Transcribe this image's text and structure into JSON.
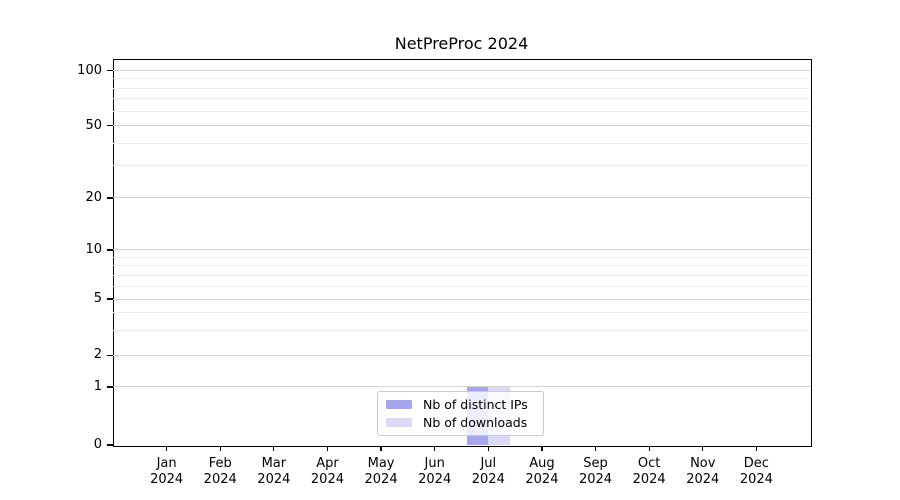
{
  "page": {
    "background": "#ffffff"
  },
  "chart_data": {
    "type": "bar",
    "title": "NetPreProc 2024",
    "categories": [
      "Jan",
      "Feb",
      "Mar",
      "Apr",
      "May",
      "Jun",
      "Jul",
      "Aug",
      "Sep",
      "Oct",
      "Nov",
      "Dec"
    ],
    "category_year": "2024",
    "series": [
      {
        "name": "Nb of distinct IPs",
        "color": "#a6a6ef",
        "values": [
          0,
          0,
          0,
          0,
          0,
          0,
          1,
          0,
          0,
          0,
          0,
          0
        ]
      },
      {
        "name": "Nb of downloads",
        "color": "#dadaf7",
        "values": [
          0,
          0,
          0,
          0,
          0,
          0,
          1,
          0,
          0,
          0,
          0,
          0
        ]
      }
    ],
    "y_axis": {
      "scale": "symlog",
      "major_ticks": [
        0,
        1,
        2,
        5,
        10,
        20,
        50,
        100
      ],
      "minor_ticks": [
        3,
        4,
        6,
        7,
        8,
        9,
        30,
        40,
        60,
        70,
        80,
        90
      ],
      "range": [
        0,
        120
      ]
    },
    "x_axis": {
      "tick_label_lines": 2
    },
    "legend": {
      "position": "bottom-center",
      "entries": [
        "Nb of distinct IPs",
        "Nb of downloads"
      ]
    },
    "grid": true,
    "colors": {
      "grid_major": "#d4d4d4",
      "grid_minor": "#ececec",
      "spine": "#000000",
      "text": "#000000"
    }
  }
}
